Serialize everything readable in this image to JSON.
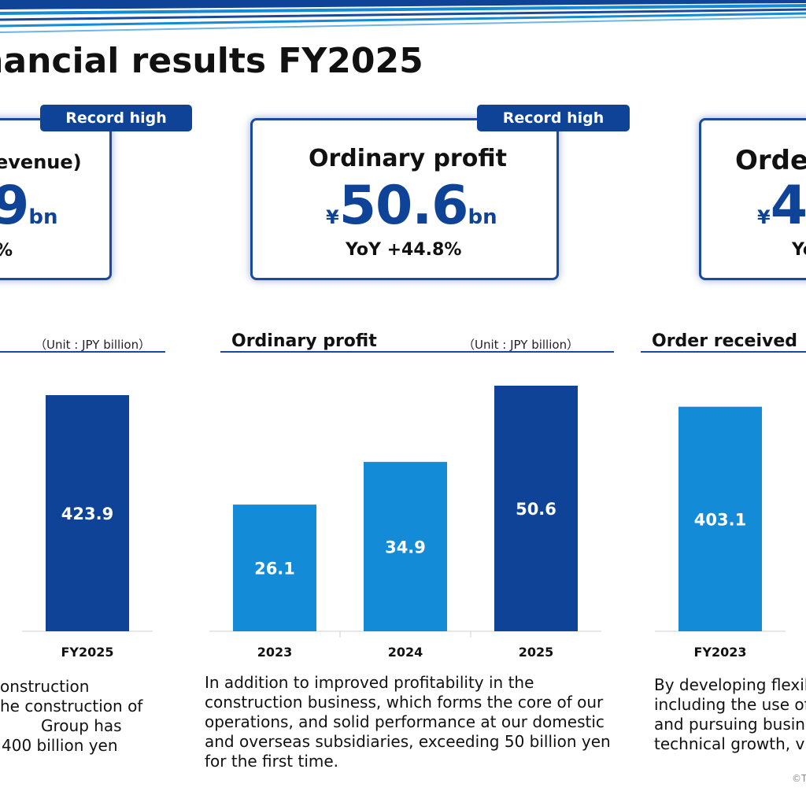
{
  "header": {
    "title": "inancial results FY2025"
  },
  "cards": {
    "revenue": {
      "badge": "Record high",
      "title": "evenue)",
      "value": "9",
      "unit": "bn",
      "yoy": "%"
    },
    "profit": {
      "badge": "Record high",
      "title": "Ordinary profit",
      "yen": "¥",
      "value": "50.6",
      "unit": "bn",
      "yoy": "YoY +44.8%"
    },
    "order": {
      "title": "Orde",
      "yen": "¥",
      "value": "4",
      "yoy": "Yo"
    }
  },
  "sections": {
    "revenue": {
      "unit_note": "（Unit : JPY billion）"
    },
    "profit": {
      "title": "Ordinary profit",
      "unit_note": "（Unit : JPY billion）"
    },
    "order": {
      "title": "Order received"
    }
  },
  "chart_data": [
    {
      "type": "bar",
      "categories": [
        "FY2025"
      ],
      "values": [
        423.9
      ],
      "colors": [
        "#0e4397"
      ],
      "title": "",
      "xlabel": "",
      "ylabel": ""
    },
    {
      "type": "bar",
      "categories": [
        "2023",
        "2024",
        "2025"
      ],
      "values": [
        26.1,
        34.9,
        50.6
      ],
      "colors": [
        "#148bd6",
        "#148bd6",
        "#0e4397"
      ],
      "title": "Ordinary profit",
      "xlabel": "",
      "ylabel": ""
    },
    {
      "type": "bar",
      "categories": [
        "FY2023"
      ],
      "values": [
        403.1
      ],
      "colors": [
        "#148bd6"
      ],
      "title": "Order received",
      "xlabel": "",
      "ylabel": ""
    }
  ],
  "descriptions": {
    "revenue": [
      "onstruction",
      "he construction of",
      "Group has",
      "400 billion yen"
    ],
    "profit": [
      "In addition to improved profitability in the",
      "construction business, which forms the core of our",
      "operations, and solid performance at our domestic",
      "and overseas subsidiaries, exceeding 50 billion yen",
      "for the first time."
    ],
    "order": [
      "By developing flexil",
      "including the use of",
      "and pursuing busin",
      "technical growth,  v"
    ]
  },
  "footer": {
    "copyright": "©T"
  },
  "colors": {
    "navy": "#0e4397",
    "light_blue": "#148bd6",
    "border": "#1a4a9c"
  }
}
